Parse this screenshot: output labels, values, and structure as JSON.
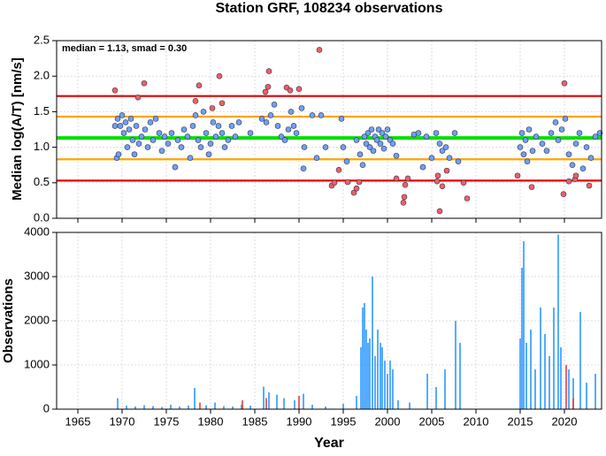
{
  "chart_data": [
    {
      "type": "scatter",
      "title": "Station GRF, 108234 observations",
      "ylabel": "Median log(A/T) [nm/s]",
      "annotation": "median = 1.13, smad = 0.30",
      "xlim": [
        1962.6,
        2024.2
      ],
      "xticks": [
        1965,
        1970,
        1975,
        1980,
        1985,
        1990,
        1995,
        2000,
        2005,
        2010,
        2015,
        2020
      ],
      "ylim": [
        0,
        2.5
      ],
      "yticks": [
        {
          "value": 0,
          "label": "0.0"
        },
        {
          "value": 0.5,
          "label": "0.5"
        },
        {
          "value": 1,
          "label": "1.0"
        },
        {
          "value": 1.5,
          "label": "1.5"
        },
        {
          "value": 2,
          "label": "2.0"
        },
        {
          "value": 2.5,
          "label": "2.5"
        }
      ],
      "grid": true,
      "reference_lines": [
        {
          "value": 1.72,
          "color": "#e00000"
        },
        {
          "value": 1.43,
          "color": "#ffa500"
        },
        {
          "value": 1.13,
          "color": "#00e000"
        },
        {
          "value": 0.83,
          "color": "#ffa500"
        },
        {
          "value": 0.53,
          "color": "#e00000"
        }
      ],
      "series": [
        {
          "color": "#6fa0f0",
          "x": [
            1969.2,
            1969.4,
            1969.5,
            1969.6,
            1969.8,
            1970.0,
            1970.2,
            1970.4,
            1970.6,
            1970.8,
            1971.0,
            1971.2,
            1971.4,
            1971.6,
            1971.9,
            1972.2,
            1972.6,
            1972.9,
            1973.2,
            1973.5,
            1973.8,
            1974.2,
            1974.5,
            1974.8,
            1975.2,
            1975.6,
            1976.0,
            1976.3,
            1976.7,
            1977.0,
            1977.4,
            1977.7,
            1978.0,
            1978.3,
            1978.6,
            1978.9,
            1979.2,
            1979.5,
            1979.8,
            1980.0,
            1980.3,
            1980.6,
            1980.9,
            1981.3,
            1981.6,
            1982.0,
            1982.4,
            1982.8,
            1983.2,
            1984.5,
            1985.8,
            1986.3,
            1986.8,
            1987.2,
            1987.6,
            1988.0,
            1988.4,
            1988.8,
            1989.1,
            1989.4,
            1989.7,
            1990.3,
            1990.6,
            1990.5,
            1991.5,
            1992.0,
            1992.5,
            1993.0,
            1994.8,
            1995.0,
            1995.4,
            1996.5,
            1996.9,
            1997.2,
            1997.4,
            1997.6,
            1997.8,
            1998.0,
            1998.2,
            1998.4,
            1998.6,
            1998.8,
            1999.0,
            1999.2,
            1999.4,
            1999.6,
            1999.8,
            2000.0,
            2000.3,
            2000.6,
            2001.0,
            2003.0,
            2003.5,
            2004.0,
            2004.4,
            2005.0,
            2005.5,
            2005.9,
            2006.2,
            2006.6,
            2007.0,
            2007.6,
            2008.0,
            2015.0,
            2015.2,
            2015.4,
            2015.6,
            2015.8,
            2016.0,
            2016.4,
            2016.8,
            2017.5,
            2018.0,
            2018.5,
            2019.0,
            2019.3,
            2019.7,
            2020.1,
            2020.5,
            2020.9,
            2021.3,
            2021.7,
            2022.1,
            2022.5,
            2023.0,
            2023.5,
            2024.0
          ],
          "values": [
            1.3,
            0.85,
            1.4,
            0.9,
            1.3,
            1.45,
            1.2,
            1.35,
            1.0,
            1.25,
            1.4,
            1.1,
            0.9,
            1.3,
            1.05,
            1.15,
            1.25,
            1.0,
            1.35,
            1.1,
            1.4,
            1.2,
            0.95,
            1.15,
            1.05,
            1.2,
            0.72,
            1.1,
            1.0,
            1.25,
            1.15,
            0.85,
            1.3,
            1.45,
            1.1,
            1.0,
            1.5,
            1.2,
            0.9,
            1.05,
            1.35,
            1.15,
            1.3,
            1.2,
            1.0,
            1.1,
            1.3,
            1.15,
            1.35,
            1.2,
            1.4,
            1.35,
            1.45,
            1.6,
            1.3,
            1.15,
            1.1,
            1.25,
            1.5,
            1.3,
            1.2,
            1.55,
            1.0,
            0.7,
            1.45,
            0.85,
            1.45,
            1.0,
            1.4,
            1.0,
            0.8,
            1.1,
            0.9,
            0.75,
            1.15,
            1.05,
            1.2,
            1.0,
            1.25,
            0.95,
            1.15,
            1.1,
            1.25,
            1.05,
            1.2,
            0.98,
            1.15,
            1.25,
            1.1,
            1.05,
            0.88,
            1.18,
            1.2,
            0.72,
            1.15,
            0.85,
            1.2,
            1.05,
            0.95,
            1.0,
            0.85,
            1.2,
            0.8,
            1.0,
            1.2,
            0.9,
            1.1,
            0.8,
            1.25,
            0.95,
            1.15,
            1.05,
            0.95,
            1.2,
            1.35,
            1.1,
            1.25,
            1.4,
            0.9,
            0.75,
            1.05,
            1.2,
            0.7,
            1.0,
            0.85,
            1.15,
            1.2
          ]
        },
        {
          "color": "#f06060",
          "x": [
            1969.2,
            1971.8,
            1972.5,
            1978.3,
            1978.7,
            1980.2,
            1981.0,
            1981.3,
            1986.2,
            1986.5,
            1986.6,
            1988.6,
            1989.0,
            1990.0,
            1992.3,
            1993.7,
            1994.0,
            1994.5,
            1995.5,
            1996.2,
            1996.5,
            1996.8,
            2001.0,
            2001.8,
            2002.0,
            2002.3,
            2001.9,
            2005.6,
            2005.7,
            2005.9,
            2006.2,
            2006.7,
            2008.6,
            2009.0,
            2014.7,
            2016.3,
            2020.0,
            2019.9,
            2020.5,
            2021.2,
            2022.8,
            2021.3
          ],
          "values": [
            1.8,
            1.7,
            1.9,
            1.65,
            1.87,
            1.55,
            2.0,
            1.62,
            1.78,
            1.85,
            2.07,
            1.84,
            1.8,
            1.82,
            2.37,
            0.46,
            0.5,
            0.68,
            0.51,
            0.36,
            0.42,
            0.51,
            0.56,
            0.22,
            0.47,
            0.56,
            0.3,
            0.52,
            0.6,
            0.1,
            0.45,
            0.67,
            0.5,
            0.28,
            0.6,
            0.44,
            1.9,
            0.34,
            0.52,
            0.55,
            0.46,
            0.6
          ]
        }
      ]
    },
    {
      "type": "bar",
      "xlabel": "Year",
      "ylabel": "Observations",
      "xlim": [
        1962.6,
        2024.2
      ],
      "xticks": [
        1965,
        1970,
        1975,
        1980,
        1985,
        1990,
        1995,
        2000,
        2005,
        2010,
        2015,
        2020
      ],
      "ylim": [
        0,
        4000
      ],
      "yticks": [
        0,
        1000,
        2000,
        3000,
        4000
      ],
      "grid": true,
      "series": [
        {
          "color": "#1e90ff",
          "x": [
            1969.5,
            1970.5,
            1971.5,
            1972.5,
            1973.5,
            1974.5,
            1975.5,
            1976.5,
            1977.5,
            1978.2,
            1979.5,
            1980.5,
            1981.5,
            1982.5,
            1983.5,
            1984.5,
            1986.0,
            1986.6,
            1987.5,
            1988.3,
            1989.5,
            1990.5,
            1991.5,
            1993.0,
            1995.0,
            1996.5,
            1997.0,
            1997.2,
            1997.4,
            1997.6,
            1997.8,
            1998.0,
            1998.3,
            1998.6,
            1998.9,
            1999.2,
            1999.4,
            1999.7,
            2000.0,
            2000.3,
            2000.6,
            2001.2,
            2002.5,
            2004.5,
            2005.5,
            2006.5,
            2007.7,
            2008.2,
            2015.0,
            2015.2,
            2015.4,
            2015.7,
            2016.2,
            2016.7,
            2017.3,
            2017.8,
            2018.3,
            2018.8,
            2019.3,
            2019.6,
            2020.5,
            2021.0,
            2021.8,
            2022.5,
            2023.5
          ],
          "values": [
            250,
            80,
            60,
            90,
            70,
            50,
            100,
            60,
            80,
            480,
            90,
            150,
            70,
            60,
            100,
            80,
            510,
            380,
            330,
            250,
            200,
            350,
            100,
            60,
            120,
            300,
            1400,
            2300,
            2400,
            1800,
            1500,
            1600,
            3000,
            1200,
            1800,
            1500,
            1400,
            1100,
            800,
            1100,
            900,
            200,
            150,
            800,
            500,
            900,
            2000,
            1500,
            1600,
            3200,
            3800,
            1500,
            1800,
            900,
            2300,
            1700,
            1200,
            2300,
            3950,
            1400,
            900,
            700,
            2200,
            600,
            800
          ]
        },
        {
          "color": "#e03030",
          "x": [
            1978.8,
            1983.6,
            1986.3,
            1990.0,
            2020.2,
            2021.0
          ],
          "values": [
            150,
            200,
            250,
            300,
            1000,
            250
          ]
        }
      ]
    }
  ]
}
